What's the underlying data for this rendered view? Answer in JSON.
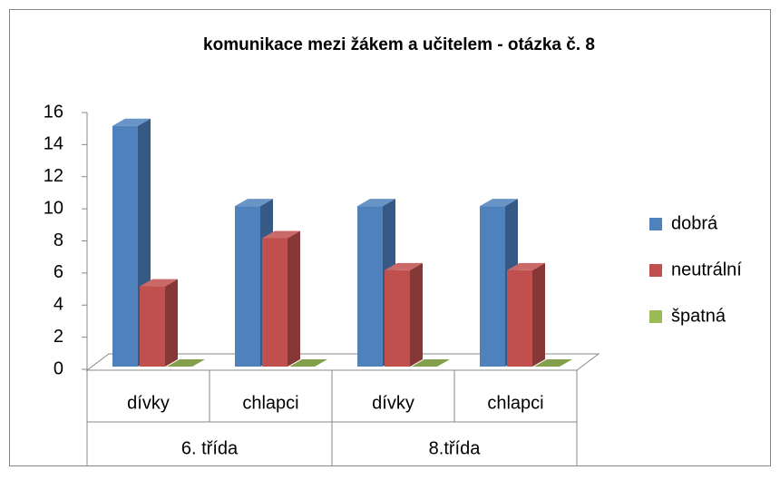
{
  "chart_data": {
    "type": "bar3d",
    "title": "komunikace mezi žákem a učitelem - otázka č. 8",
    "categories": [
      "dívky",
      "chlapci",
      "dívky",
      "chlapci"
    ],
    "groups": [
      "6. třída",
      "8.třída"
    ],
    "series": [
      {
        "name": "dobrá",
        "color": "#4f81bd",
        "values": [
          15,
          10,
          10,
          10
        ]
      },
      {
        "name": "neutrální",
        "color": "#c0504d",
        "values": [
          5,
          8,
          6,
          6
        ]
      },
      {
        "name": "špatná",
        "color": "#9bbb59",
        "values": [
          0,
          0,
          0,
          0
        ]
      }
    ],
    "ylim": [
      0,
      16
    ],
    "yticks": [
      0,
      2,
      4,
      6,
      8,
      10,
      12,
      14,
      16
    ],
    "legend": "right"
  }
}
